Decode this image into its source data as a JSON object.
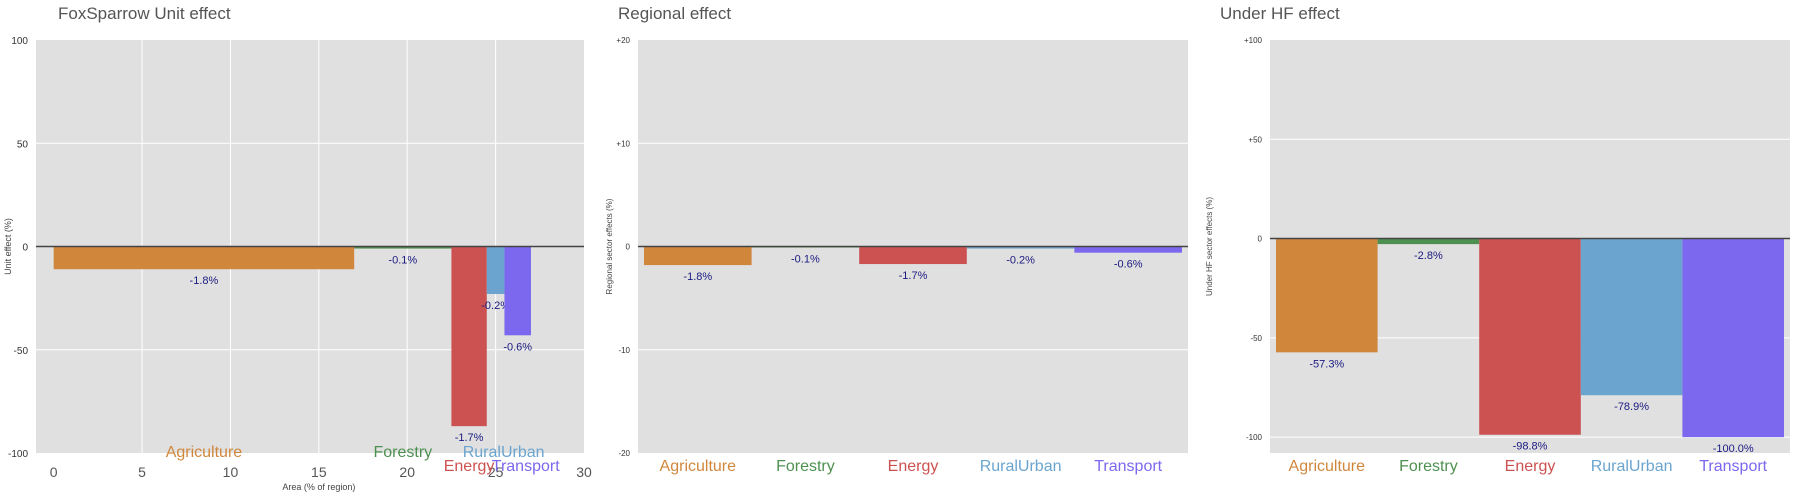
{
  "colors": {
    "Agriculture": "#D0873C",
    "Forestry": "#4E9050",
    "Energy": "#CC5151",
    "RuralUrban": "#6BA5CF",
    "Transport": "#7B68EE",
    "label": "#1a1a80",
    "plot_bg": "#E0E0E0"
  },
  "chart_data": [
    {
      "type": "bar",
      "title": "FoxSparrow Unit effect",
      "xlabel": "Area (% of region)",
      "ylabel": "Unit effect (%)",
      "xlim": [
        -1,
        30
      ],
      "ylim": [
        -100,
        100
      ],
      "xticks": [
        "0",
        "5",
        "10",
        "15",
        "20",
        "25",
        "30"
      ],
      "yticks": [
        "100",
        "50",
        "0",
        "-50",
        "-100"
      ],
      "xtick_values": [
        0,
        5,
        10,
        15,
        20,
        25,
        30
      ],
      "ytick_values": [
        100,
        50,
        0,
        -50,
        -100
      ],
      "bars": [
        {
          "name": "Agriculture",
          "x0": 0,
          "x1": 17,
          "value": -11,
          "label": "-1.8%"
        },
        {
          "name": "Forestry",
          "x0": 17,
          "x1": 22.5,
          "value": -1,
          "label": "-0.1%"
        },
        {
          "name": "Energy",
          "x0": 22.5,
          "x1": 24.5,
          "value": -87,
          "label": "-1.7%"
        },
        {
          "name": "RuralUrban",
          "x0": 24.5,
          "x1": 25.5,
          "value": -23,
          "label": "-0.2%"
        },
        {
          "name": "Transport",
          "x0": 25.5,
          "x1": 27,
          "value": -43,
          "label": "-0.6%"
        }
      ],
      "categories": [
        "Agriculture",
        "Forestry",
        "Energy",
        "RuralUrban",
        "Transport"
      ]
    },
    {
      "type": "bar",
      "title": "Regional effect",
      "xlabel": "",
      "ylabel": "Regional sector effects (%)",
      "ylim": [
        -20,
        20
      ],
      "yticks": [
        "+20",
        "+10",
        "0",
        "-10",
        "-20"
      ],
      "ytick_values": [
        20,
        10,
        0,
        -10,
        -20
      ],
      "categories": [
        "Agriculture",
        "Forestry",
        "Energy",
        "RuralUrban",
        "Transport"
      ],
      "values": [
        -1.8,
        -0.1,
        -1.7,
        -0.2,
        -0.6
      ],
      "labels": [
        "-1.8%",
        "-0.1%",
        "-1.7%",
        "-0.2%",
        "-0.6%"
      ]
    },
    {
      "type": "bar",
      "title": "Under HF effect",
      "xlabel": "",
      "ylabel": "Under HF sector effects (%)",
      "ylim": [
        -108,
        100
      ],
      "yticks": [
        "+100",
        "+50",
        "0",
        "-50",
        "-100"
      ],
      "ytick_values": [
        100,
        50,
        0,
        -50,
        -100
      ],
      "categories": [
        "Agriculture",
        "Forestry",
        "Energy",
        "RuralUrban",
        "Transport"
      ],
      "values": [
        -57.3,
        -2.8,
        -98.8,
        -78.9,
        -100.0
      ],
      "labels": [
        "-57.3%",
        "-2.8%",
        "-98.8%",
        "-78.9%",
        "-100.0%"
      ]
    }
  ]
}
